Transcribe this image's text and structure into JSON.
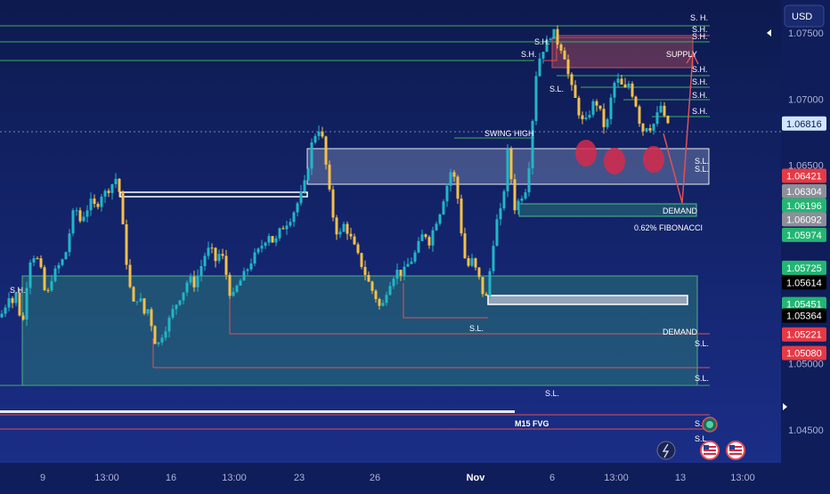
{
  "currency_label": "USD",
  "price_axis": {
    "ticks": [
      {
        "label": "1.07500",
        "value": 1.075
      },
      {
        "label": "1.07000",
        "value": 1.07
      },
      {
        "label": "1.06500",
        "value": 1.065
      },
      {
        "label": "1.05000",
        "value": 1.05
      },
      {
        "label": "1.04500",
        "value": 1.045
      }
    ],
    "badges": [
      {
        "label": "1.06816",
        "value": 1.06816,
        "bg": "#d3e6ff",
        "fg": "#0a1a4a"
      },
      {
        "label": "1.06421",
        "value": 1.06421,
        "bg": "#e63946",
        "fg": "#ffffff"
      },
      {
        "label": "1.06304",
        "value": 1.06304,
        "bg": "#8c8f99",
        "fg": "#ffffff"
      },
      {
        "label": "1.06196",
        "value": 1.06196,
        "bg": "#22b573",
        "fg": "#ffffff"
      },
      {
        "label": "1.06092",
        "value": 1.06092,
        "bg": "#8c8f99",
        "fg": "#ffffff"
      },
      {
        "label": "1.05974",
        "value": 1.05974,
        "bg": "#22b573",
        "fg": "#ffffff"
      },
      {
        "label": "1.05725",
        "value": 1.05725,
        "bg": "#22b573",
        "fg": "#ffffff"
      },
      {
        "label": "1.05614",
        "value": 1.05614,
        "bg": "#000000",
        "fg": "#ffffff"
      },
      {
        "label": "1.05451",
        "value": 1.05451,
        "bg": "#22b573",
        "fg": "#ffffff"
      },
      {
        "label": "1.05364",
        "value": 1.05364,
        "bg": "#000000",
        "fg": "#ffffff"
      },
      {
        "label": "1.05221",
        "value": 1.05221,
        "bg": "#e63946",
        "fg": "#ffffff"
      },
      {
        "label": "1.05080",
        "value": 1.0508,
        "bg": "#e63946",
        "fg": "#ffffff"
      }
    ]
  },
  "time_axis": [
    "9",
    "13:00",
    "16",
    "13:00",
    "23",
    "26",
    "Nov",
    "6",
    "13:00",
    "13",
    "13:00"
  ],
  "annotations": {
    "sh": "S.H.",
    "sh_spaced": "S. H.",
    "sl": "S.L.",
    "supply": "SUPPLY",
    "demand": "DEMAND",
    "swing_high": "SWING HIGH",
    "fib": "0.62% FIBONACCI",
    "fvg": "M15 FVG"
  },
  "colors": {
    "bull": "#22b6c8",
    "bear": "#f5c04a",
    "swing_line": "#3fae62",
    "stop_line": "#e0505a",
    "demand_zone": "#2f8f7a",
    "supply_zone": "#b4505e",
    "circle": "#d62a4b"
  },
  "chart_data": {
    "type": "candlestick",
    "instrument_currency": "USD",
    "x_ticks": [
      "9",
      "13:00",
      "16",
      "13:00",
      "23",
      "26",
      "Nov",
      "6",
      "13:00",
      "13",
      "13:00"
    ],
    "y_ticks": [
      1.075,
      1.07,
      1.065,
      1.05,
      1.045
    ],
    "ylim": [
      1.0425,
      1.0775
    ],
    "current_price": 1.06816,
    "marked_levels": [
      1.06421,
      1.06304,
      1.06196,
      1.06092,
      1.05974,
      1.05725,
      1.05614,
      1.05451,
      1.05364,
      1.05221,
      1.0508
    ],
    "close_path": [
      {
        "x": 0,
        "y": 1.0535
      },
      {
        "x": 5,
        "y": 1.0542
      },
      {
        "x": 10,
        "y": 1.0552
      },
      {
        "x": 15,
        "y": 1.0545
      },
      {
        "x": 20,
        "y": 1.0558
      },
      {
        "x": 24,
        "y": 1.0518
      },
      {
        "x": 28,
        "y": 1.0548
      },
      {
        "x": 33,
        "y": 1.0578
      },
      {
        "x": 40,
        "y": 1.0583
      },
      {
        "x": 46,
        "y": 1.057
      },
      {
        "x": 52,
        "y": 1.0548
      },
      {
        "x": 58,
        "y": 1.0565
      },
      {
        "x": 64,
        "y": 1.0572
      },
      {
        "x": 70,
        "y": 1.0578
      },
      {
        "x": 76,
        "y": 1.0588
      },
      {
        "x": 80,
        "y": 1.061
      },
      {
        "x": 85,
        "y": 1.0618
      },
      {
        "x": 90,
        "y": 1.0608
      },
      {
        "x": 96,
        "y": 1.0615
      },
      {
        "x": 102,
        "y": 1.0622
      },
      {
        "x": 108,
        "y": 1.0618
      },
      {
        "x": 114,
        "y": 1.0628
      },
      {
        "x": 120,
        "y": 1.063
      },
      {
        "x": 126,
        "y": 1.0636
      },
      {
        "x": 132,
        "y": 1.0642
      },
      {
        "x": 136,
        "y": 1.0618
      },
      {
        "x": 140,
        "y": 1.0588
      },
      {
        "x": 145,
        "y": 1.056
      },
      {
        "x": 150,
        "y": 1.0545
      },
      {
        "x": 156,
        "y": 1.0552
      },
      {
        "x": 162,
        "y": 1.0538
      },
      {
        "x": 167,
        "y": 1.0542
      },
      {
        "x": 172,
        "y": 1.0522
      },
      {
        "x": 176,
        "y": 1.0512
      },
      {
        "x": 182,
        "y": 1.0522
      },
      {
        "x": 188,
        "y": 1.053
      },
      {
        "x": 194,
        "y": 1.054
      },
      {
        "x": 200,
        "y": 1.0548
      },
      {
        "x": 206,
        "y": 1.0555
      },
      {
        "x": 212,
        "y": 1.0565
      },
      {
        "x": 218,
        "y": 1.056
      },
      {
        "x": 224,
        "y": 1.057
      },
      {
        "x": 230,
        "y": 1.0582
      },
      {
        "x": 236,
        "y": 1.0588
      },
      {
        "x": 242,
        "y": 1.0578
      },
      {
        "x": 248,
        "y": 1.0585
      },
      {
        "x": 252,
        "y": 1.0575
      },
      {
        "x": 256,
        "y": 1.056
      },
      {
        "x": 260,
        "y": 1.0548
      },
      {
        "x": 266,
        "y": 1.0558
      },
      {
        "x": 272,
        "y": 1.0565
      },
      {
        "x": 278,
        "y": 1.0572
      },
      {
        "x": 284,
        "y": 1.058
      },
      {
        "x": 290,
        "y": 1.0585
      },
      {
        "x": 296,
        "y": 1.0592
      },
      {
        "x": 302,
        "y": 1.0598
      },
      {
        "x": 308,
        "y": 1.059
      },
      {
        "x": 314,
        "y": 1.06
      },
      {
        "x": 320,
        "y": 1.0605
      },
      {
        "x": 326,
        "y": 1.061
      },
      {
        "x": 332,
        "y": 1.0618
      },
      {
        "x": 338,
        "y": 1.0628
      },
      {
        "x": 344,
        "y": 1.064
      },
      {
        "x": 348,
        "y": 1.066
      },
      {
        "x": 352,
        "y": 1.0672
      },
      {
        "x": 356,
        "y": 1.0675
      },
      {
        "x": 360,
        "y": 1.068
      },
      {
        "x": 364,
        "y": 1.066
      },
      {
        "x": 368,
        "y": 1.064
      },
      {
        "x": 372,
        "y": 1.0618
      },
      {
        "x": 376,
        "y": 1.0605
      },
      {
        "x": 380,
        "y": 1.0595
      },
      {
        "x": 386,
        "y": 1.0605
      },
      {
        "x": 392,
        "y": 1.0598
      },
      {
        "x": 398,
        "y": 1.0588
      },
      {
        "x": 404,
        "y": 1.0578
      },
      {
        "x": 410,
        "y": 1.0568
      },
      {
        "x": 416,
        "y": 1.0558
      },
      {
        "x": 422,
        "y": 1.055
      },
      {
        "x": 428,
        "y": 1.054
      },
      {
        "x": 434,
        "y": 1.0555
      },
      {
        "x": 440,
        "y": 1.0565
      },
      {
        "x": 446,
        "y": 1.057
      },
      {
        "x": 452,
        "y": 1.0568
      },
      {
        "x": 458,
        "y": 1.0575
      },
      {
        "x": 464,
        "y": 1.058
      },
      {
        "x": 470,
        "y": 1.059
      },
      {
        "x": 476,
        "y": 1.06
      },
      {
        "x": 482,
        "y": 1.0592
      },
      {
        "x": 488,
        "y": 1.0605
      },
      {
        "x": 494,
        "y": 1.0615
      },
      {
        "x": 500,
        "y": 1.063
      },
      {
        "x": 506,
        "y": 1.0645
      },
      {
        "x": 512,
        "y": 1.0638
      },
      {
        "x": 516,
        "y": 1.0612
      },
      {
        "x": 520,
        "y": 1.0588
      },
      {
        "x": 524,
        "y": 1.0572
      },
      {
        "x": 530,
        "y": 1.0578
      },
      {
        "x": 536,
        "y": 1.0568
      },
      {
        "x": 540,
        "y": 1.056
      },
      {
        "x": 545,
        "y": 1.0545
      },
      {
        "x": 550,
        "y": 1.057
      },
      {
        "x": 554,
        "y": 1.0592
      },
      {
        "x": 558,
        "y": 1.0608
      },
      {
        "x": 564,
        "y": 1.0618
      },
      {
        "x": 570,
        "y": 1.066
      },
      {
        "x": 574,
        "y": 1.064
      },
      {
        "x": 578,
        "y": 1.0618
      },
      {
        "x": 584,
        "y": 1.0625
      },
      {
        "x": 590,
        "y": 1.0632
      },
      {
        "x": 596,
        "y": 1.066
      },
      {
        "x": 600,
        "y": 1.071
      },
      {
        "x": 604,
        "y": 1.0728
      },
      {
        "x": 610,
        "y": 1.0738
      },
      {
        "x": 616,
        "y": 1.0745
      },
      {
        "x": 620,
        "y": 1.0752
      },
      {
        "x": 624,
        "y": 1.0748
      },
      {
        "x": 628,
        "y": 1.0738
      },
      {
        "x": 632,
        "y": 1.074
      },
      {
        "x": 636,
        "y": 1.0725
      },
      {
        "x": 640,
        "y": 1.0712
      },
      {
        "x": 646,
        "y": 1.07
      },
      {
        "x": 650,
        "y": 1.069
      },
      {
        "x": 656,
        "y": 1.068
      },
      {
        "x": 662,
        "y": 1.069
      },
      {
        "x": 668,
        "y": 1.07
      },
      {
        "x": 674,
        "y": 1.069
      },
      {
        "x": 680,
        "y": 1.0675
      },
      {
        "x": 686,
        "y": 1.07
      },
      {
        "x": 690,
        "y": 1.0712
      },
      {
        "x": 696,
        "y": 1.0715
      },
      {
        "x": 700,
        "y": 1.0705
      },
      {
        "x": 706,
        "y": 1.0712
      },
      {
        "x": 712,
        "y": 1.07
      },
      {
        "x": 716,
        "y": 1.0692
      },
      {
        "x": 720,
        "y": 1.0675
      },
      {
        "x": 726,
        "y": 1.068
      },
      {
        "x": 732,
        "y": 1.0678
      },
      {
        "x": 738,
        "y": 1.0688
      },
      {
        "x": 742,
        "y": 1.0695
      },
      {
        "x": 746,
        "y": 1.0685
      },
      {
        "x": 750,
        "y": 1.0682
      }
    ]
  }
}
